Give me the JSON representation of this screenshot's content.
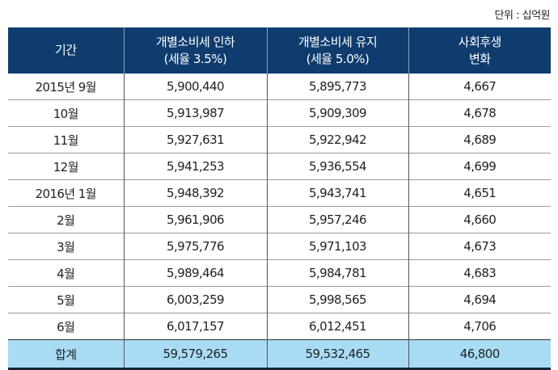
{
  "unit_label": "단위 : 십억원",
  "headers": [
    {
      "line1": "기간",
      "line2": ""
    },
    {
      "line1": "개별소비세 인하",
      "line2": "(세율 3.5%)"
    },
    {
      "line1": "개별소비세 유지",
      "line2": "(세율 5.0%)"
    },
    {
      "line1": "사회후생",
      "line2": "변화"
    }
  ],
  "rows": [
    [
      "2015년 9월",
      "5,900,440",
      "5,895,773",
      "4,667"
    ],
    [
      "10월",
      "5,913,987",
      "5,909,309",
      "4,678"
    ],
    [
      "11월",
      "5,927,631",
      "5,922,942",
      "4,689"
    ],
    [
      "12월",
      "5,941,253",
      "5,936,554",
      "4,699"
    ],
    [
      "2016년 1월",
      "5,948,392",
      "5,943,741",
      "4,651"
    ],
    [
      "2월",
      "5,961,906",
      "5,957,246",
      "4,660"
    ],
    [
      "3월",
      "5,975,776",
      "5,971,103",
      "4,673"
    ],
    [
      "4월",
      "5,989,464",
      "5,984,781",
      "4,683"
    ],
    [
      "5월",
      "6,003,259",
      "5,998,565",
      "4,694"
    ],
    [
      "6월",
      "6,017,157",
      "6,012,451",
      "4,706"
    ]
  ],
  "total": [
    "합계",
    "59,579,265",
    "59,532,465",
    "46,800"
  ],
  "colors": {
    "header_bg": "#0f3c6e",
    "total_bg": "#a8dcf5"
  }
}
